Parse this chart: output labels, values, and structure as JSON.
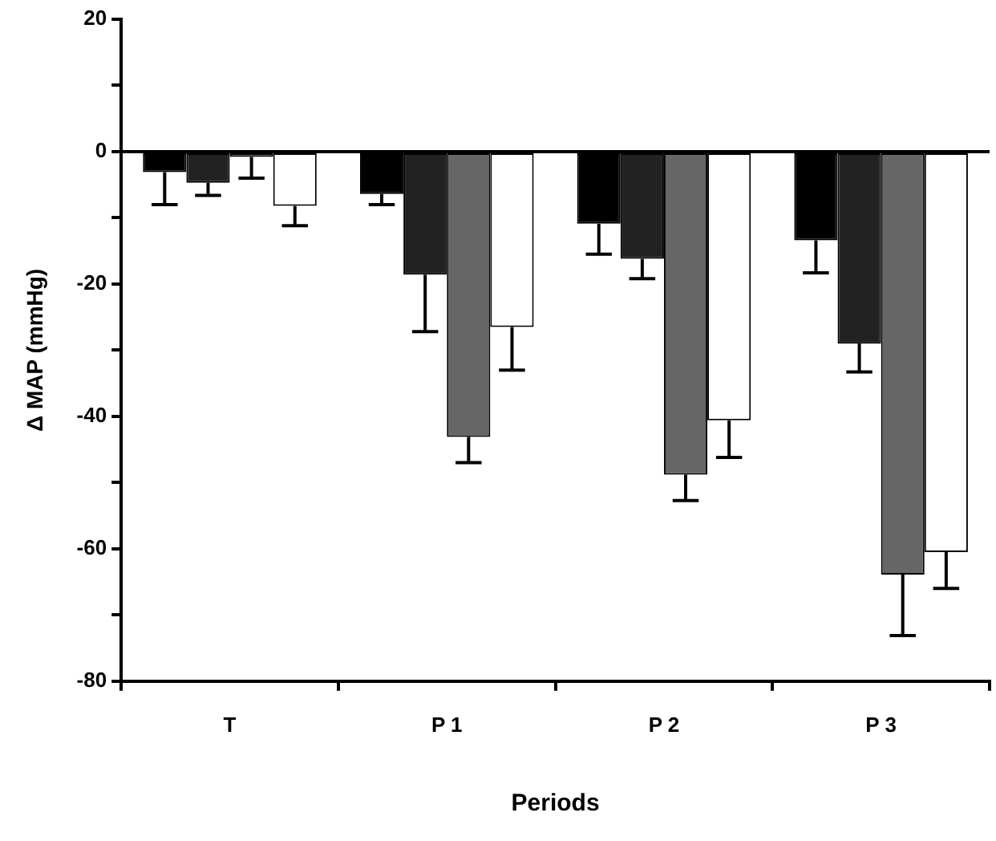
{
  "chart_data": {
    "type": "bar",
    "xlabel": "Periods",
    "ylabel": "Δ MAP (mmHg)",
    "categories": [
      "T",
      "P 1",
      "P 2",
      "P 3"
    ],
    "series": [
      {
        "color": "#000000",
        "values": [
          -3.1,
          -6.4,
          -10.9,
          -13.4
        ],
        "errors": [
          [
            -8,
            -3.1
          ],
          [
            -8,
            -6.4
          ],
          [
            -15.5,
            -10.9
          ],
          [
            -18.3,
            -13.4
          ]
        ]
      },
      {
        "color": "#222222",
        "values": [
          -4.7,
          -18.6,
          -16.2,
          -29
        ],
        "errors": [
          [
            -6.6,
            -4.7
          ],
          [
            -27.2,
            -18.6
          ],
          [
            -19.2,
            -16.2
          ],
          [
            -33.3,
            -29
          ]
        ]
      },
      {
        "color": "#666666",
        "values": [
          -0.8,
          -43.1,
          -48.8,
          -63.9
        ],
        "errors": [
          [
            -4,
            -0.8
          ],
          [
            -47,
            -43.1
          ],
          [
            -52.7,
            -48.8
          ],
          [
            -73.1,
            -63.9
          ]
        ]
      },
      {
        "color": "#ffffff",
        "values": [
          -8.2,
          -26.5,
          -40.6,
          -60.5
        ],
        "errors": [
          [
            -11.2,
            -8.2
          ],
          [
            -33,
            -26.5
          ],
          [
            -46.2,
            -40.6
          ],
          [
            -66,
            -60.5
          ]
        ]
      }
    ],
    "ylim": [
      -80,
      20
    ],
    "yticks": [
      20,
      {
        "value": 10,
        "label": null
      },
      0,
      {
        "value": -10,
        "label": null
      },
      -20,
      {
        "value": -30,
        "label": null
      },
      -40,
      {
        "value": -50,
        "label": null
      },
      -60,
      {
        "value": -70,
        "label": null
      },
      -80
    ],
    "ref_lines": [
      {
        "axis": "y",
        "value": 0,
        "color": "#000000"
      }
    ],
    "grid": false,
    "legend": false
  }
}
